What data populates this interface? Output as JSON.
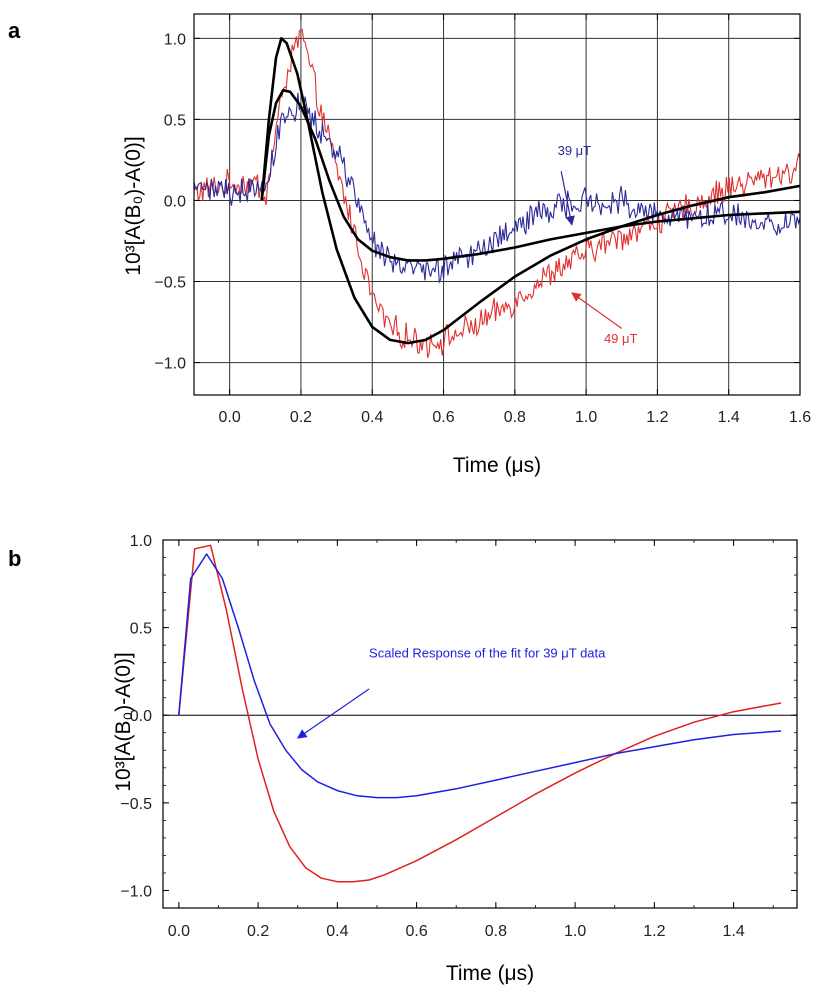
{
  "colors": {
    "red": "#e03030",
    "blue": "#2a2a9a",
    "fit": "#000000",
    "blue_b": "#1f1fe0",
    "red_b": "#e02020",
    "grid": "#333333"
  },
  "chart_data": [
    {
      "type": "line",
      "panel_label": "a",
      "xlabel": "Time  (μs)",
      "ylabel": "10³[A(B₀)-A(0)]",
      "xlim": [
        -0.1,
        1.6
      ],
      "ylim": [
        -1.2,
        1.15
      ],
      "xticks": [
        0.0,
        0.2,
        0.4,
        0.6,
        0.8,
        1.0,
        1.2,
        1.4,
        1.6
      ],
      "xtick_labels": [
        "0.0",
        "0.2",
        "0.4",
        "0.6",
        "0.8",
        "1.0",
        "1.2",
        "1.4",
        "1.6"
      ],
      "yticks": [
        1.0,
        0.5,
        0.0,
        -0.5,
        -1.0
      ],
      "ytick_labels": [
        "1.0",
        "0.5",
        "0.0",
        "−0.5",
        "−1.0"
      ],
      "grid": true,
      "series": [
        {
          "name": "49 μT",
          "style": "noisy",
          "color": "red",
          "x": [
            -0.1,
            0.0,
            0.08,
            0.1,
            0.15,
            0.2,
            0.25,
            0.3,
            0.35,
            0.4,
            0.45,
            0.5,
            0.55,
            0.6,
            0.7,
            0.8,
            0.9,
            1.0,
            1.1,
            1.2,
            1.3,
            1.4,
            1.5,
            1.6
          ],
          "y": [
            0.05,
            0.1,
            0.1,
            0.0,
            0.7,
            1.05,
            0.6,
            0.2,
            -0.2,
            -0.6,
            -0.78,
            -0.85,
            -0.88,
            -0.86,
            -0.76,
            -0.62,
            -0.45,
            -0.32,
            -0.22,
            -0.13,
            -0.03,
            0.08,
            0.14,
            0.2
          ]
        },
        {
          "name": "39 μT",
          "style": "noisy",
          "color": "blue",
          "x": [
            -0.1,
            0.0,
            0.08,
            0.1,
            0.15,
            0.2,
            0.25,
            0.3,
            0.35,
            0.4,
            0.45,
            0.5,
            0.55,
            0.6,
            0.7,
            0.8,
            0.9,
            1.0,
            1.1,
            1.2,
            1.3,
            1.4,
            1.5,
            1.6
          ],
          "y": [
            0.1,
            0.05,
            0.1,
            0.1,
            0.5,
            0.6,
            0.45,
            0.3,
            0.05,
            -0.25,
            -0.38,
            -0.42,
            -0.45,
            -0.42,
            -0.3,
            -0.15,
            -0.05,
            0.0,
            0.0,
            -0.1,
            -0.1,
            -0.1,
            -0.15,
            -0.1
          ]
        },
        {
          "name": "",
          "style": "fit",
          "color": "fit",
          "x": [
            0.09,
            0.11,
            0.13,
            0.145,
            0.16,
            0.19,
            0.22,
            0.26,
            0.3,
            0.35,
            0.4,
            0.45,
            0.5,
            0.55,
            0.6,
            0.7,
            0.8,
            0.9,
            1.0,
            1.1,
            1.2,
            1.3,
            1.4,
            1.5,
            1.6
          ],
          "y": [
            0.0,
            0.5,
            0.88,
            1.0,
            0.97,
            0.78,
            0.48,
            0.05,
            -0.3,
            -0.6,
            -0.78,
            -0.86,
            -0.88,
            -0.86,
            -0.8,
            -0.63,
            -0.47,
            -0.34,
            -0.24,
            -0.16,
            -0.09,
            -0.03,
            0.02,
            0.05,
            0.09
          ]
        },
        {
          "name": "",
          "style": "fit",
          "color": "fit",
          "x": [
            0.09,
            0.11,
            0.13,
            0.15,
            0.17,
            0.2,
            0.24,
            0.28,
            0.32,
            0.36,
            0.4,
            0.45,
            0.5,
            0.55,
            0.6,
            0.7,
            0.8,
            0.9,
            1.0,
            1.1,
            1.2,
            1.3,
            1.4,
            1.5,
            1.6
          ],
          "y": [
            0.0,
            0.4,
            0.6,
            0.68,
            0.67,
            0.58,
            0.38,
            0.12,
            -0.1,
            -0.24,
            -0.31,
            -0.35,
            -0.37,
            -0.37,
            -0.36,
            -0.33,
            -0.29,
            -0.24,
            -0.2,
            -0.16,
            -0.13,
            -0.11,
            -0.09,
            -0.08,
            -0.07
          ]
        }
      ],
      "annotations": [
        {
          "text": "39 μT",
          "color": "blue",
          "x": 0.92,
          "y": 0.28,
          "arrow_to": [
            0.96,
            -0.15
          ],
          "arrow_from": [
            0.93,
            0.18
          ]
        },
        {
          "text": "49 μT",
          "color": "red",
          "x": 1.05,
          "y": -0.88,
          "arrow_to": [
            0.96,
            -0.57
          ],
          "arrow_from": [
            1.1,
            -0.79
          ]
        }
      ]
    },
    {
      "type": "line",
      "panel_label": "b",
      "xlabel": "Time  (μs)",
      "ylabel": "10³[A(B₀)-A(0)]",
      "xlim": [
        -0.04,
        1.56
      ],
      "ylim": [
        -1.1,
        1.0
      ],
      "xticks": [
        0.0,
        0.2,
        0.4,
        0.6,
        0.8,
        1.0,
        1.2,
        1.4
      ],
      "xtick_labels": [
        "0.0",
        "0.2",
        "0.4",
        "0.6",
        "0.8",
        "1.0",
        "1.2",
        "1.4"
      ],
      "yticks": [
        1.0,
        0.5,
        0.0,
        -0.5,
        -1.0
      ],
      "ytick_labels": [
        "1.0",
        "0.5",
        "0.0",
        "−0.5",
        "−1.0"
      ],
      "grid": false,
      "zero_line": true,
      "series": [
        {
          "name": "",
          "color": "red_b",
          "x": [
            0.0,
            0.04,
            0.08,
            0.12,
            0.16,
            0.2,
            0.24,
            0.28,
            0.32,
            0.36,
            0.4,
            0.44,
            0.48,
            0.52,
            0.56,
            0.6,
            0.7,
            0.8,
            0.9,
            1.0,
            1.1,
            1.2,
            1.3,
            1.4,
            1.52
          ],
          "y": [
            0.0,
            0.95,
            0.97,
            0.6,
            0.15,
            -0.25,
            -0.55,
            -0.75,
            -0.87,
            -0.93,
            -0.95,
            -0.95,
            -0.94,
            -0.91,
            -0.87,
            -0.83,
            -0.71,
            -0.58,
            -0.45,
            -0.33,
            -0.22,
            -0.12,
            -0.04,
            0.02,
            0.07
          ]
        },
        {
          "name": "",
          "color": "blue_b",
          "x": [
            0.0,
            0.03,
            0.07,
            0.11,
            0.15,
            0.19,
            0.23,
            0.27,
            0.31,
            0.35,
            0.4,
            0.45,
            0.5,
            0.55,
            0.6,
            0.7,
            0.8,
            0.9,
            1.0,
            1.1,
            1.2,
            1.3,
            1.4,
            1.52
          ],
          "y": [
            0.0,
            0.78,
            0.92,
            0.78,
            0.5,
            0.2,
            -0.05,
            -0.2,
            -0.31,
            -0.38,
            -0.43,
            -0.46,
            -0.47,
            -0.47,
            -0.46,
            -0.42,
            -0.37,
            -0.32,
            -0.27,
            -0.22,
            -0.18,
            -0.14,
            -0.11,
            -0.09
          ]
        }
      ],
      "annotations": [
        {
          "text": "Scaled Response of the fit for 39 μT data",
          "color": "blue_b",
          "x": 0.48,
          "y": 0.33,
          "arrow_to": [
            0.3,
            -0.13
          ],
          "arrow_from": [
            0.48,
            0.15
          ]
        }
      ]
    }
  ]
}
